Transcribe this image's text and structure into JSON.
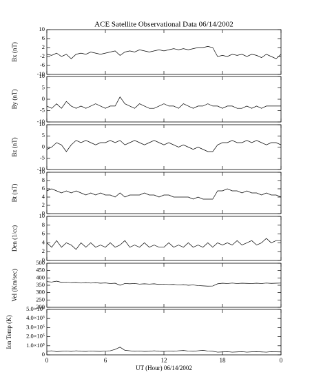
{
  "chart_data": [
    {
      "type": "line",
      "title": "ACE Satellite Observational Data   06/14/2002",
      "ylabel": "Bx (nT)",
      "x": [
        0,
        0.5,
        1,
        1.5,
        2,
        2.5,
        3,
        3.5,
        4,
        4.5,
        5,
        5.5,
        6,
        6.5,
        7,
        7.5,
        8,
        8.5,
        9,
        9.5,
        10,
        10.5,
        11,
        11.5,
        12,
        12.5,
        13,
        13.5,
        14,
        14.5,
        15,
        15.5,
        16,
        16.5,
        17,
        17.5,
        18,
        18.5,
        19,
        19.5,
        20,
        20.5,
        21,
        21.5,
        22,
        22.5,
        23,
        23.5,
        24
      ],
      "series": [
        {
          "name": "Bx",
          "color": "#000000",
          "values": [
            -1,
            -1.5,
            -0.5,
            -2,
            -1,
            -3,
            -1,
            -0.5,
            -1,
            0,
            -0.5,
            -1,
            -0.5,
            0,
            0.5,
            -1.5,
            0,
            0.5,
            0,
            1,
            0.5,
            0,
            0.5,
            1,
            0.5,
            1,
            1.5,
            1,
            1.5,
            1,
            1.5,
            2,
            2,
            2.5,
            2,
            -2,
            -1.5,
            -2,
            -1,
            -1.5,
            -1,
            -2,
            -1,
            -1.5,
            -2.5,
            -1,
            -2,
            -3,
            -1
          ]
        }
      ],
      "ylim": [
        -10,
        10
      ],
      "yticks": [
        -10,
        -6,
        -2,
        2,
        6,
        10
      ]
    },
    {
      "type": "line",
      "ylabel": "By (nT)",
      "x": [
        0,
        0.5,
        1,
        1.5,
        2,
        2.5,
        3,
        3.5,
        4,
        4.5,
        5,
        5.5,
        6,
        6.5,
        7,
        7.5,
        8,
        8.5,
        9,
        9.5,
        10,
        10.5,
        11,
        11.5,
        12,
        12.5,
        13,
        13.5,
        14,
        14.5,
        15,
        15.5,
        16,
        16.5,
        17,
        17.5,
        18,
        18.5,
        19,
        19.5,
        20,
        20.5,
        21,
        21.5,
        22,
        22.5,
        23,
        23.5,
        24
      ],
      "series": [
        {
          "name": "By",
          "color": "#000000",
          "values": [
            -3,
            -4,
            -2,
            -4,
            -1,
            -3,
            -4,
            -3,
            -4,
            -3,
            -2,
            -3,
            -4,
            -3,
            -3,
            1,
            -2,
            -3,
            -4,
            -2,
            -3,
            -4,
            -4,
            -3,
            -2,
            -3,
            -3,
            -4,
            -2,
            -3,
            -4,
            -3,
            -3,
            -2,
            -3,
            -3,
            -4,
            -3,
            -3,
            -4,
            -4,
            -3,
            -4,
            -3,
            -4,
            -3,
            -3,
            -3,
            -3
          ]
        }
      ],
      "ylim": [
        -10,
        10
      ],
      "yticks": [
        -10,
        -5,
        0,
        5,
        10
      ]
    },
    {
      "type": "line",
      "ylabel": "Bz (nT)",
      "x": [
        0,
        0.5,
        1,
        1.5,
        2,
        2.5,
        3,
        3.5,
        4,
        4.5,
        5,
        5.5,
        6,
        6.5,
        7,
        7.5,
        8,
        8.5,
        9,
        9.5,
        10,
        10.5,
        11,
        11.5,
        12,
        12.5,
        13,
        13.5,
        14,
        14.5,
        15,
        15.5,
        16,
        16.5,
        17,
        17.5,
        18,
        18.5,
        19,
        19.5,
        20,
        20.5,
        21,
        21.5,
        22,
        22.5,
        23,
        23.5,
        24
      ],
      "series": [
        {
          "name": "Bz",
          "color": "#000000",
          "values": [
            -1,
            0,
            2,
            1,
            -2,
            1,
            3,
            2,
            3,
            2,
            1,
            2,
            2,
            3,
            2,
            3,
            1,
            2,
            3,
            2,
            1,
            2,
            3,
            2,
            1,
            2,
            1,
            0,
            1,
            0,
            -1,
            0,
            -1,
            -2,
            -2,
            1,
            2,
            2,
            3,
            2,
            2,
            3,
            2,
            3,
            2,
            1,
            2,
            2,
            1
          ]
        }
      ],
      "ylim": [
        -10,
        10
      ],
      "yticks": [
        -10,
        -5,
        0,
        5,
        10
      ]
    },
    {
      "type": "line",
      "ylabel": "Bt (nT)",
      "x": [
        0,
        0.5,
        1,
        1.5,
        2,
        2.5,
        3,
        3.5,
        4,
        4.5,
        5,
        5.5,
        6,
        6.5,
        7,
        7.5,
        8,
        8.5,
        9,
        9.5,
        10,
        10.5,
        11,
        11.5,
        12,
        12.5,
        13,
        13.5,
        14,
        14.5,
        15,
        15.5,
        16,
        16.5,
        17,
        17.5,
        18,
        18.5,
        19,
        19.5,
        20,
        20.5,
        21,
        21.5,
        22,
        22.5,
        23,
        23.5,
        24
      ],
      "series": [
        {
          "name": "Bt",
          "color": "#000000",
          "values": [
            5.5,
            6,
            5.5,
            5,
            5.5,
            5,
            5.5,
            5,
            4.5,
            5,
            4.5,
            5,
            4.5,
            4.5,
            4,
            5,
            4,
            4.5,
            4.5,
            4.5,
            5,
            4.5,
            4.5,
            4,
            4.5,
            4.5,
            4,
            4,
            4,
            4,
            3.5,
            4,
            3.5,
            3.5,
            3.5,
            5.5,
            5.5,
            6,
            5.5,
            5.5,
            5,
            5.5,
            5,
            5,
            4.5,
            5,
            4.5,
            4.5,
            4
          ]
        }
      ],
      "ylim": [
        0,
        10
      ],
      "yticks": [
        0,
        2,
        4,
        6,
        8,
        10
      ]
    },
    {
      "type": "line",
      "ylabel": "Den (1/cc)",
      "x": [
        0,
        0.5,
        1,
        1.5,
        2,
        2.5,
        3,
        3.5,
        4,
        4.5,
        5,
        5.5,
        6,
        6.5,
        7,
        7.5,
        8,
        8.5,
        9,
        9.5,
        10,
        10.5,
        11,
        11.5,
        12,
        12.5,
        13,
        13.5,
        14,
        14.5,
        15,
        15.5,
        16,
        16.5,
        17,
        17.5,
        18,
        18.5,
        19,
        19.5,
        20,
        20.5,
        21,
        21.5,
        22,
        22.5,
        23,
        23.5,
        24
      ],
      "series": [
        {
          "name": "Den",
          "color": "#000000",
          "values": [
            4,
            3,
            4.5,
            3,
            4,
            3.5,
            2.5,
            4,
            3,
            4,
            3,
            3.5,
            3,
            4,
            3,
            3.5,
            4.5,
            3,
            3.5,
            3,
            4,
            3,
            3.5,
            3,
            3,
            4,
            3,
            3.5,
            3,
            4,
            3,
            3.5,
            3,
            4,
            3,
            4,
            3.5,
            4,
            3.5,
            4.5,
            3.5,
            4,
            4.5,
            3.5,
            4,
            5,
            4,
            4.5,
            4.5
          ]
        }
      ],
      "ylim": [
        0,
        10
      ],
      "yticks": [
        0,
        2,
        4,
        6,
        8,
        10
      ]
    },
    {
      "type": "line",
      "ylabel": "Vel (Km/sec)",
      "x": [
        0,
        0.5,
        1,
        1.5,
        2,
        2.5,
        3,
        3.5,
        4,
        4.5,
        5,
        5.5,
        6,
        6.5,
        7,
        7.5,
        8,
        8.5,
        9,
        9.5,
        10,
        10.5,
        11,
        11.5,
        12,
        12.5,
        13,
        13.5,
        14,
        14.5,
        15,
        15.5,
        16,
        16.5,
        17,
        17.5,
        18,
        18.5,
        19,
        19.5,
        20,
        20.5,
        21,
        21.5,
        22,
        22.5,
        23,
        23.5,
        24
      ],
      "series": [
        {
          "name": "Vel",
          "color": "#000000",
          "values": [
            375,
            372,
            378,
            370,
            372,
            368,
            370,
            365,
            368,
            365,
            367,
            364,
            366,
            362,
            364,
            350,
            362,
            360,
            362,
            358,
            360,
            358,
            360,
            356,
            358,
            355,
            356,
            352,
            354,
            350,
            352,
            348,
            346,
            344,
            345,
            360,
            364,
            362,
            365,
            362,
            364,
            363,
            362,
            364,
            362,
            365,
            363,
            364,
            365
          ]
        }
      ],
      "ylim": [
        200,
        500
      ],
      "yticks": [
        200,
        250,
        300,
        350,
        400,
        450,
        500
      ]
    },
    {
      "type": "line",
      "ylabel": "Ion Temp (K)",
      "xlabel": "UT (Hour)   06/14/2002",
      "x": [
        0,
        0.5,
        1,
        1.5,
        2,
        2.5,
        3,
        3.5,
        4,
        4.5,
        5,
        5.5,
        6,
        6.5,
        7,
        7.5,
        8,
        8.5,
        9,
        9.5,
        10,
        10.5,
        11,
        11.5,
        12,
        12.5,
        13,
        13.5,
        14,
        14.5,
        15,
        15.5,
        16,
        16.5,
        17,
        17.5,
        18,
        18.5,
        19,
        19.5,
        20,
        20.5,
        21,
        21.5,
        22,
        22.5,
        23,
        23.5,
        24
      ],
      "series": [
        {
          "name": "Ion Temp",
          "color": "#000000",
          "values": [
            40000,
            45000,
            35000,
            40000,
            42000,
            38000,
            45000,
            40000,
            38000,
            42000,
            40000,
            38000,
            42000,
            45000,
            60000,
            85000,
            50000,
            45000,
            40000,
            42000,
            38000,
            40000,
            45000,
            40000,
            38000,
            42000,
            40000,
            45000,
            48000,
            42000,
            40000,
            45000,
            50000,
            42000,
            40000,
            30000,
            32000,
            35000,
            30000,
            32000,
            35000,
            30000,
            33000,
            35000,
            32000,
            30000,
            35000,
            33000,
            32000
          ]
        }
      ],
      "ylim": [
        0,
        500000
      ],
      "yticks": [
        0,
        {
          "value": 100000,
          "label": "1.0×10⁵"
        },
        {
          "value": 200000,
          "label": "2.0×10⁵"
        },
        {
          "value": 300000,
          "label": "3.0×10⁵"
        },
        {
          "value": 400000,
          "label": "4.0×10⁵"
        },
        {
          "value": 500000,
          "label": "5.0×10⁵"
        }
      ],
      "xlim": [
        0,
        24
      ],
      "xticks": [
        0,
        6,
        12,
        18,
        {
          "value": 24,
          "label": "0"
        }
      ]
    }
  ]
}
